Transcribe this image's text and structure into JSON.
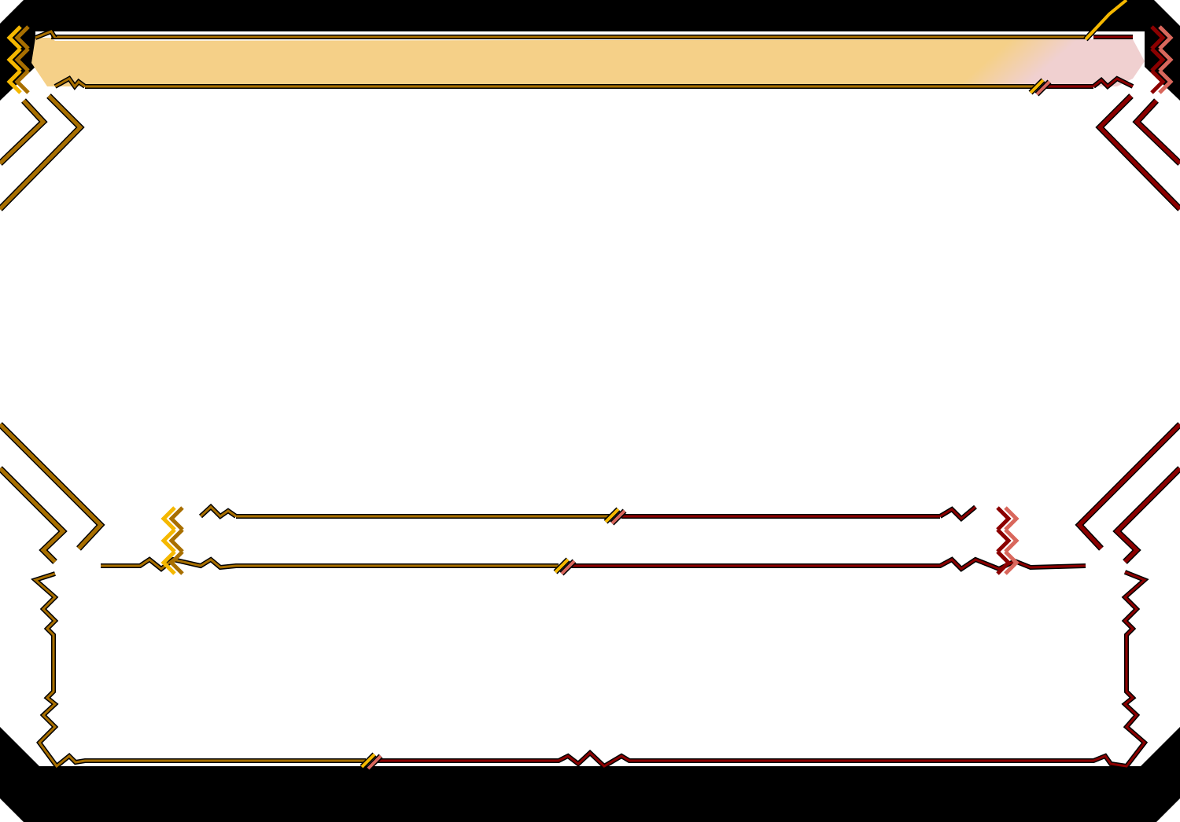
{
  "frame": {
    "colors": {
      "gold": "#a86f00",
      "gold_light": "#f5b800",
      "red": "#8b0000",
      "red_light": "#d9675c",
      "banner_gold": "#f5d088",
      "banner_pink": "#f0d0d0",
      "background": "#000000"
    }
  }
}
